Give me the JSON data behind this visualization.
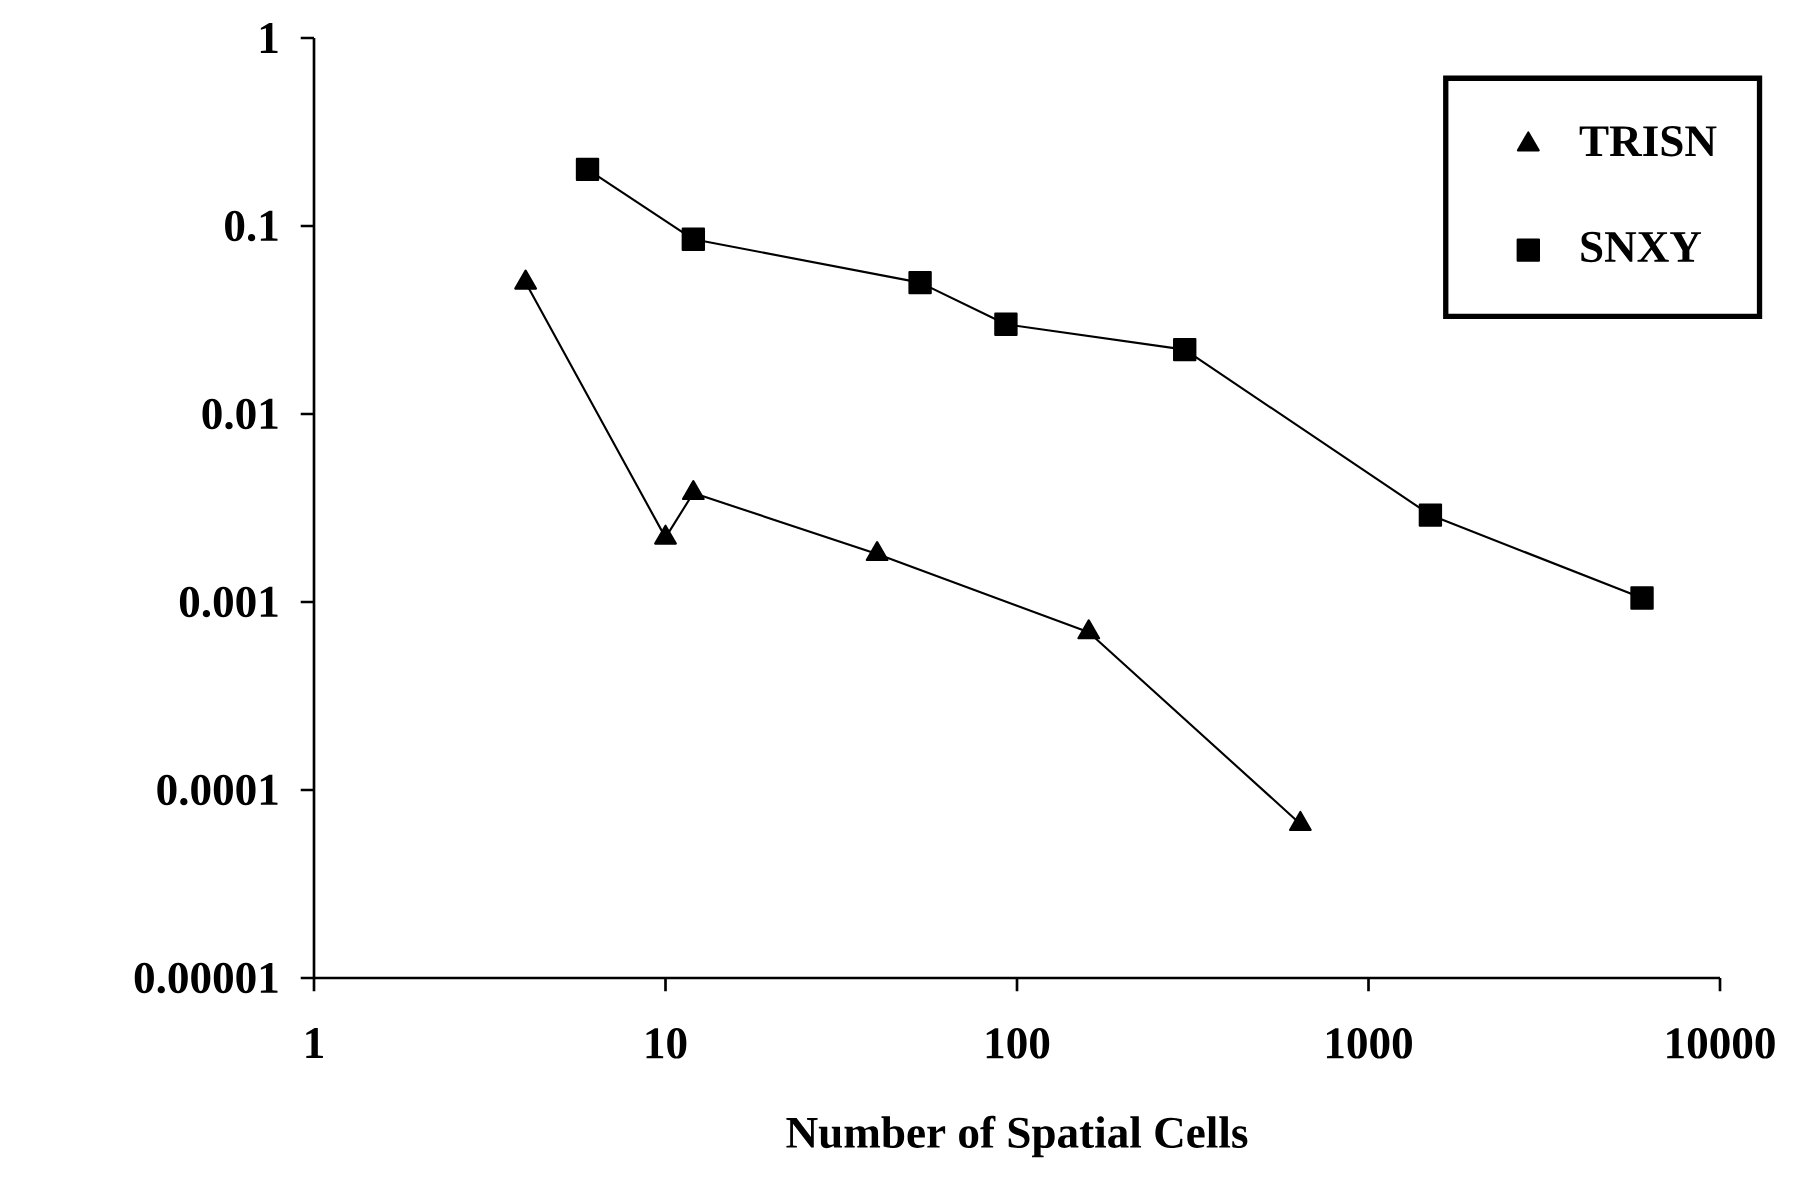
{
  "chart_data": {
    "type": "line",
    "xlabel": "Number of Spatial Cells",
    "log": "xy",
    "legend": "top right",
    "line_style": "solid",
    "xlim": [
      1,
      10000
    ],
    "xticks": [
      1,
      10,
      100,
      1000,
      10000
    ],
    "ylim": [
      1e-05,
      1
    ],
    "yticks": [
      {
        "value": 1e-05,
        "label": "0.00001"
      },
      0.0001,
      0.001,
      0.01,
      0.1,
      1
    ],
    "series": [
      {
        "name": "TRISN",
        "color": "#000000",
        "marker": "triangle",
        "x": [
          4,
          10,
          12,
          40,
          160,
          640
        ],
        "values": [
          0.05,
          0.0022,
          0.0038,
          0.0018,
          0.00069,
          6.6e-05
        ]
      },
      {
        "name": "SNXY",
        "color": "#000000",
        "marker": "square",
        "x": [
          6,
          12,
          53,
          93,
          300,
          1500,
          6000
        ],
        "values": [
          0.2,
          0.085,
          0.05,
          0.03,
          0.022,
          0.0029,
          0.00105
        ]
      }
    ]
  }
}
